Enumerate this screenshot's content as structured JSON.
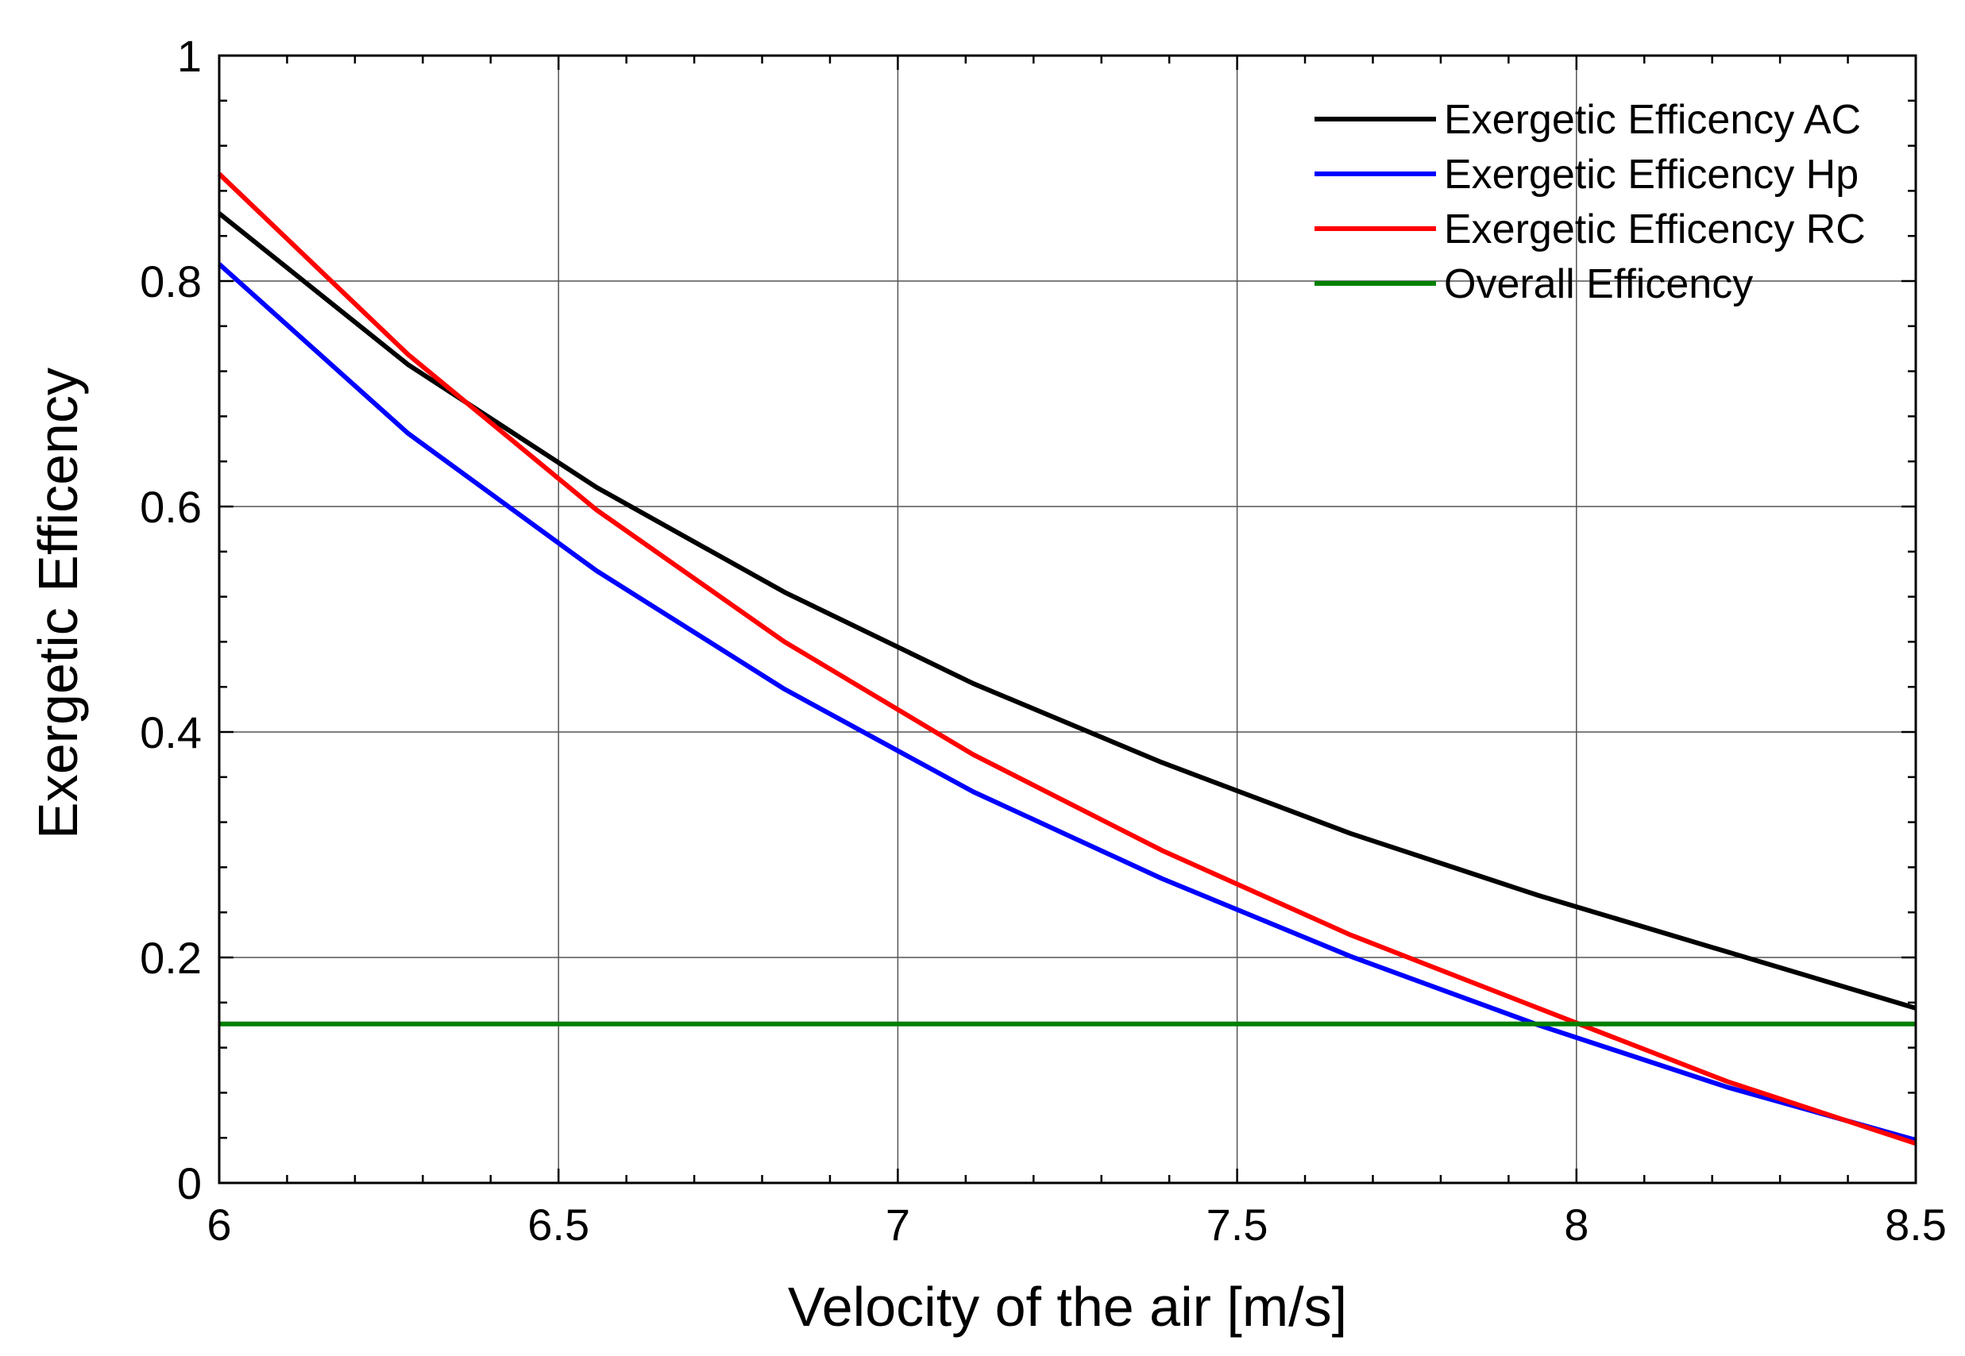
{
  "chart_data": {
    "type": "line",
    "title": "",
    "xlabel": "Velocity of the air [m/s]",
    "ylabel": "Exergetic Efficency",
    "xlim": [
      6,
      8.5
    ],
    "ylim": [
      0,
      1
    ],
    "x_ticks": [
      6,
      6.5,
      7,
      7.5,
      8,
      8.5
    ],
    "x_tick_labels": [
      "6",
      "6.5",
      "7",
      "7.5",
      "8",
      "8.5"
    ],
    "y_ticks": [
      0,
      0.2,
      0.4,
      0.6,
      0.8,
      1
    ],
    "y_tick_labels": [
      "0",
      "0.2",
      "0.4",
      "0.6",
      "0.8",
      "1"
    ],
    "grid": true,
    "legend_position": "top-right",
    "series": [
      {
        "name": "Exergetic Efficency AC",
        "color": "#000000",
        "x": [
          6,
          6.278,
          6.556,
          6.833,
          7.111,
          7.389,
          7.667,
          7.944,
          8.222,
          8.5
        ],
        "y": [
          0.86,
          0.726,
          0.617,
          0.524,
          0.443,
          0.373,
          0.31,
          0.255,
          0.205,
          0.155
        ]
      },
      {
        "name": "Exergetic Efficency Hp",
        "color": "#0000ff",
        "x": [
          6,
          6.278,
          6.556,
          6.833,
          7.111,
          7.389,
          7.667,
          7.944,
          8.222,
          8.5
        ],
        "y": [
          0.815,
          0.665,
          0.543,
          0.438,
          0.347,
          0.27,
          0.201,
          0.14,
          0.085,
          0.038
        ]
      },
      {
        "name": "Exergetic Efficency RC",
        "color": "#ff0000",
        "x": [
          6,
          6.278,
          6.556,
          6.833,
          7.111,
          7.389,
          7.667,
          7.944,
          8.222,
          8.5
        ],
        "y": [
          0.895,
          0.735,
          0.597,
          0.48,
          0.38,
          0.295,
          0.22,
          0.155,
          0.09,
          0.035
        ]
      },
      {
        "name": "Overall Efficency",
        "color": "#008000",
        "x": [
          6,
          8.5
        ],
        "y": [
          0.141,
          0.141
        ]
      }
    ]
  }
}
